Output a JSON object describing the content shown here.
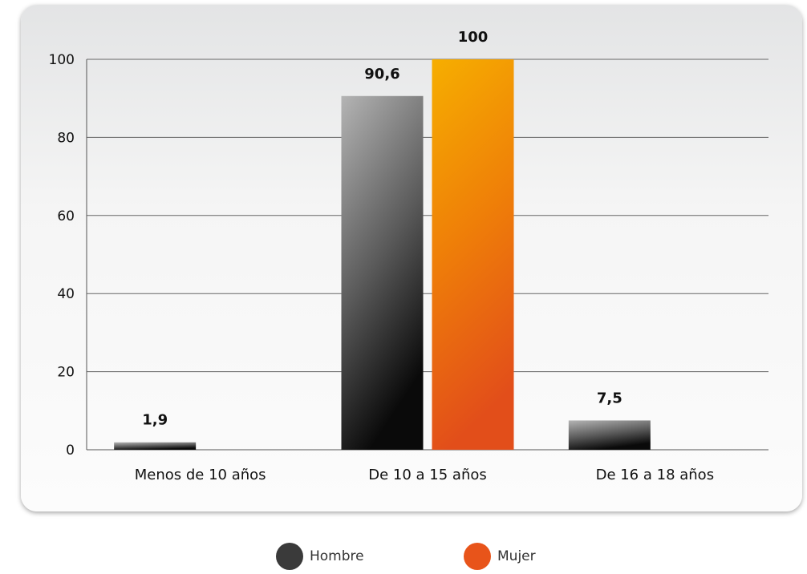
{
  "chart_data": {
    "type": "bar",
    "categories": [
      "Menos de 10 años",
      "De 10 a 15 años",
      "De 16 a 18 años"
    ],
    "series": [
      {
        "name": "Hombre",
        "values": [
          1.9,
          90.6,
          7.5
        ],
        "labels": [
          "1,9",
          "90,6",
          "7,5"
        ],
        "color": "#333333"
      },
      {
        "name": "Mujer",
        "values": [
          null,
          100,
          null
        ],
        "labels": [
          "",
          "100",
          ""
        ],
        "color": "#e8541a"
      }
    ],
    "yticks": [
      0,
      20,
      40,
      60,
      80,
      100
    ],
    "ylim": [
      0,
      100
    ],
    "grid": true,
    "legend_position": "bottom"
  }
}
